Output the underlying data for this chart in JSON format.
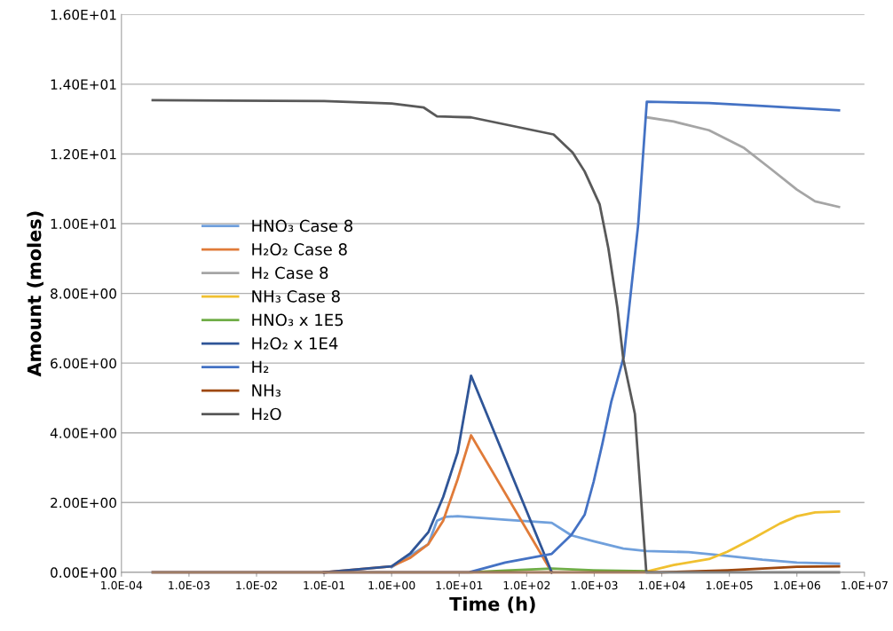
{
  "chart_data": {
    "type": "line",
    "xlabel": "Time (h)",
    "ylabel": "Amount (moles)",
    "log": "x",
    "grid": "y",
    "legend": "center left",
    "marker": "none",
    "line_style": "solid",
    "xlim": [
      0.0001,
      10000000
    ],
    "ylim": [
      0,
      16
    ],
    "xticks": [
      {
        "value": 0.0001,
        "label": "1.0E-04"
      },
      {
        "value": 0.001,
        "label": "1.0E-03"
      },
      {
        "value": 0.01,
        "label": "1.0E-02"
      },
      {
        "value": 0.1,
        "label": "1.0E-01"
      },
      {
        "value": 1,
        "label": "1.0E+00"
      },
      {
        "value": 10,
        "label": "1.0E+01"
      },
      {
        "value": 100,
        "label": "1.0E+02"
      },
      {
        "value": 1000,
        "label": "1.0E+03"
      },
      {
        "value": 10000,
        "label": "1.0E+04"
      },
      {
        "value": 100000,
        "label": "1.0E+05"
      },
      {
        "value": 1000000,
        "label": "1.0E+06"
      },
      {
        "value": 10000000,
        "label": "1.0E+07"
      }
    ],
    "yticks": [
      {
        "value": 0,
        "label": "0.00E+00"
      },
      {
        "value": 2,
        "label": "2.00E+00"
      },
      {
        "value": 4,
        "label": "4.00E+00"
      },
      {
        "value": 6,
        "label": "6.00E+00"
      },
      {
        "value": 8,
        "label": "8.00E+00"
      },
      {
        "value": 10,
        "label": "1.00E+01"
      },
      {
        "value": 12,
        "label": "1.20E+01"
      },
      {
        "value": 14,
        "label": "1.40E+01"
      },
      {
        "value": 16,
        "label": "1.60E+01"
      }
    ],
    "series": [
      {
        "name": "HNO₃ Case 8",
        "color": "#70a0dc",
        "x": [
          1,
          3.5,
          4.7,
          6.3,
          9.5,
          48,
          235,
          460,
          980,
          2700,
          5900,
          25000,
          93000,
          309000,
          1000000,
          4200000
        ],
        "values": [
          0.15,
          0.81,
          1.48,
          1.59,
          1.61,
          1.51,
          1.42,
          1.06,
          0.89,
          0.68,
          0.61,
          0.58,
          0.47,
          0.36,
          0.28,
          0.25
        ]
      },
      {
        "name": "H₂O₂ Case 8",
        "color": "#e07b39",
        "x": [
          0.1,
          1,
          1.9,
          3.5,
          5.8,
          9.5,
          15,
          235
        ],
        "values": [
          0,
          0.17,
          0.42,
          0.81,
          1.48,
          2.67,
          3.93,
          0
        ]
      },
      {
        "name": "H₂ Case 8",
        "color": "#a5a5a5",
        "x": [
          6000,
          15000,
          50000,
          166000,
          407000,
          1000000,
          1860000,
          4200000
        ],
        "values": [
          13.05,
          12.93,
          12.68,
          12.17,
          11.58,
          10.98,
          10.64,
          10.48
        ]
      },
      {
        "name": "NH₃ Case 8",
        "color": "#f0c030",
        "x": [
          5900,
          15000,
          50000,
          93000,
          224000,
          562000,
          1000000,
          1860000,
          4200000
        ],
        "values": [
          0.02,
          0.21,
          0.38,
          0.59,
          0.97,
          1.4,
          1.61,
          1.72,
          1.74
        ]
      },
      {
        "name": "HNO₃ x 1E5",
        "color": "#70ad47",
        "x": [
          15,
          48,
          235,
          980,
          5900
        ],
        "values": [
          0,
          0.05,
          0.11,
          0.06,
          0.03
        ]
      },
      {
        "name": "H₂O₂ x 1E4",
        "color": "#2f5597",
        "x": [
          0.1,
          1,
          1.9,
          3.5,
          5.8,
          9.5,
          15,
          235
        ],
        "values": [
          0,
          0.17,
          0.55,
          1.15,
          2.16,
          3.44,
          5.64,
          0
        ]
      },
      {
        "name": "H₂",
        "color": "#4472c4",
        "x": [
          0.00029,
          14,
          48,
          235,
          460,
          720,
          980,
          1320,
          1780,
          2750,
          4470,
          6000,
          50000,
          309000,
          1000000,
          4200000
        ],
        "values": [
          0,
          0,
          0.28,
          0.53,
          1.08,
          1.65,
          2.6,
          3.69,
          4.88,
          6.2,
          9.97,
          13.5,
          13.46,
          13.38,
          13.32,
          13.25
        ]
      },
      {
        "name": "NH₃",
        "color": "#9e480e",
        "x": [
          0.00029,
          10000,
          93000,
          309000,
          1000000,
          4200000
        ],
        "values": [
          0,
          0,
          0.06,
          0.11,
          0.16,
          0.17
        ]
      },
      {
        "name": "H₂O",
        "color": "#595959",
        "x": [
          0.00029,
          0.1,
          1,
          3,
          4.7,
          15,
          250,
          480,
          720,
          1200,
          1620,
          2200,
          2700,
          4000,
          5900,
          4200000
        ],
        "values": [
          13.54,
          13.52,
          13.45,
          13.33,
          13.08,
          13.05,
          12.56,
          12.04,
          11.5,
          10.56,
          9.29,
          7.59,
          6.1,
          4.54,
          0,
          0
        ]
      }
    ]
  }
}
